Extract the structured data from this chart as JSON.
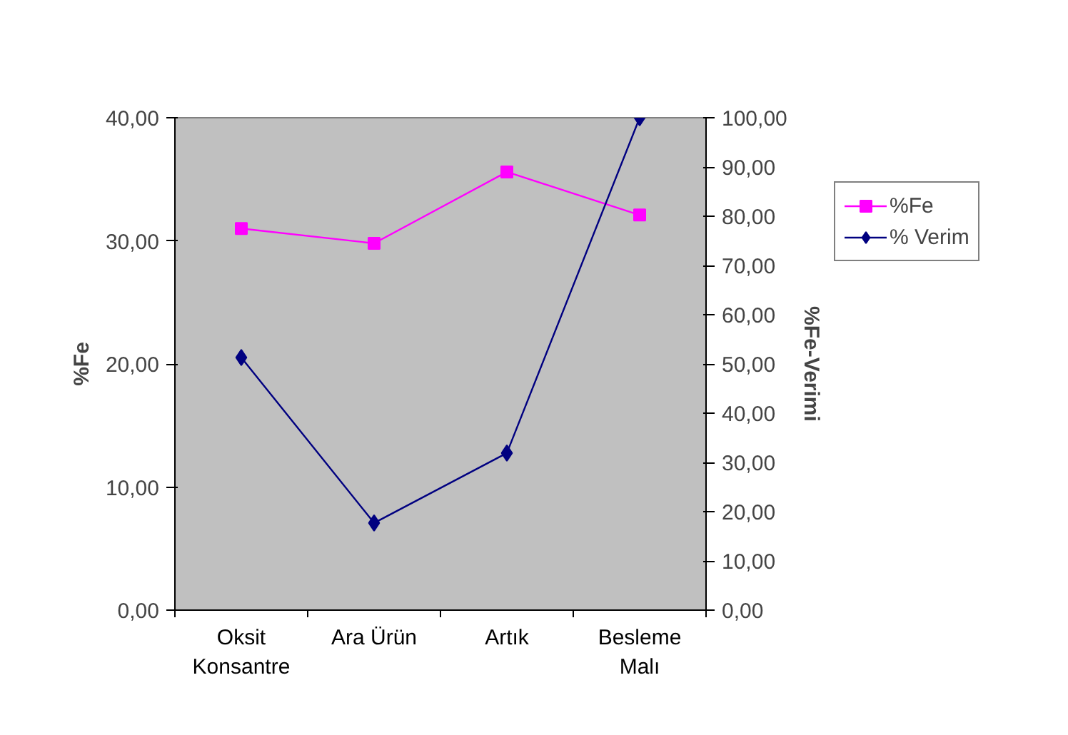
{
  "chart_data": {
    "type": "line",
    "categories": [
      "Oksit\nKonsantre",
      "Ara Ürün",
      "Artık",
      "Besleme\nMalı"
    ],
    "series": [
      {
        "name": "%Fe",
        "color": "#ff00ff",
        "values": [
          31.0,
          29.8,
          35.6,
          32.1
        ],
        "marker": "square"
      },
      {
        "name": "% Verim",
        "color": "#000080",
        "values": [
          51.3,
          17.7,
          31.9,
          100.0
        ],
        "marker": "diamond",
        "axis": "y2"
      }
    ],
    "ylabel": "%Fe",
    "y2label": "%Fe-Verimi",
    "ylim": [
      0,
      40
    ],
    "yticks": [
      {
        "value": 0,
        "label": "0,00"
      },
      {
        "value": 10,
        "label": "10,00"
      },
      {
        "value": 20,
        "label": "20,00"
      },
      {
        "value": 30,
        "label": "30,00"
      },
      {
        "value": 40,
        "label": "40,00"
      }
    ],
    "y2lim": [
      0,
      100
    ],
    "y2ticks": [
      {
        "value": 0,
        "label": "0,00"
      },
      {
        "value": 10,
        "label": "10,00"
      },
      {
        "value": 20,
        "label": "20,00"
      },
      {
        "value": 30,
        "label": "30,00"
      },
      {
        "value": 40,
        "label": "40,00"
      },
      {
        "value": 50,
        "label": "50,00"
      },
      {
        "value": 60,
        "label": "60,00"
      },
      {
        "value": 70,
        "label": "70,00"
      },
      {
        "value": 80,
        "label": "80,00"
      },
      {
        "value": 90,
        "label": "90,00"
      },
      {
        "value": 100,
        "label": "100,00"
      }
    ],
    "grid": false,
    "legend": "top right",
    "line_style": "solid"
  }
}
